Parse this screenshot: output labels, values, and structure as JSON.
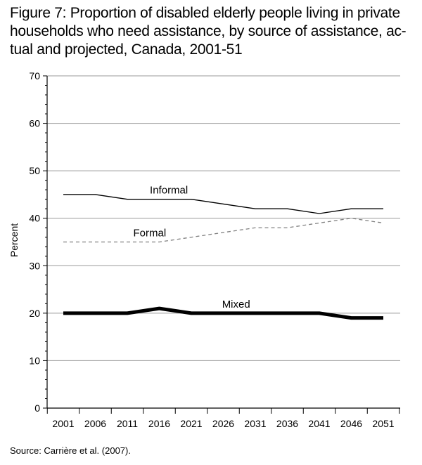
{
  "title_lines": [
    "Figure 7: Proportion of disabled elderly people living in private",
    "households who need assistance, by source of assistance, ac-",
    "tual and projected, Canada, 2001-51"
  ],
  "source": "Source: Carrière et al. (2007).",
  "chart_data": {
    "type": "line",
    "title": "Figure 7: Proportion of disabled elderly people living in private households who need assistance, by source of assistance, actual and projected, Canada, 2001-51",
    "xlabel": "",
    "ylabel": "Percent",
    "ylim": [
      0,
      70
    ],
    "yticks": [
      0,
      10,
      20,
      30,
      40,
      50,
      60,
      70
    ],
    "grid": true,
    "categories": [
      "2001",
      "2006",
      "2011",
      "2016",
      "2021",
      "2026",
      "2031",
      "2036",
      "2041",
      "2046",
      "2051"
    ],
    "series": [
      {
        "name": "Informal",
        "style": "solid-thin",
        "color": "#000000",
        "values": [
          45,
          45,
          44,
          44,
          44,
          43,
          42,
          42,
          41,
          42,
          42
        ]
      },
      {
        "name": "Formal",
        "style": "dashed",
        "color": "#808080",
        "values": [
          35,
          35,
          35,
          35,
          36,
          37,
          38,
          38,
          39,
          40,
          39
        ]
      },
      {
        "name": "Mixed",
        "style": "solid-thick",
        "color": "#000000",
        "values": [
          20,
          20,
          20,
          21,
          20,
          20,
          20,
          20,
          20,
          19,
          19
        ]
      }
    ]
  }
}
